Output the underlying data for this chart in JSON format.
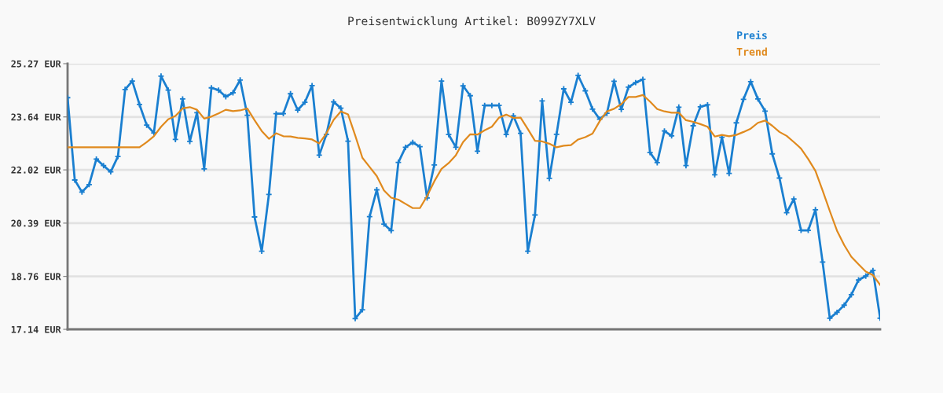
{
  "chart_data": {
    "type": "line",
    "title": "Preisentwicklung Artikel: B099ZY7XLV",
    "categories": [
      null,
      null,
      null,
      null,
      null,
      null,
      null,
      null,
      null,
      null,
      null,
      null,
      null,
      null,
      null,
      null,
      null,
      null,
      null,
      null,
      null,
      null,
      null,
      null,
      null,
      null,
      null,
      null,
      null,
      null,
      null,
      null,
      null,
      null,
      null,
      null,
      null,
      null,
      null,
      null,
      null,
      null,
      null,
      null,
      null,
      null,
      null,
      null,
      null,
      null,
      null,
      null,
      null,
      null,
      null,
      null,
      null,
      null,
      null,
      null,
      null,
      null,
      null,
      null,
      null,
      null,
      null,
      null,
      null,
      null,
      null,
      null,
      null,
      null,
      null,
      null,
      null,
      null,
      null,
      null,
      null,
      null,
      null,
      null,
      null,
      null,
      null,
      null,
      null,
      null,
      null,
      null,
      null,
      null,
      null,
      null,
      null,
      null,
      null,
      null,
      null,
      null,
      null,
      null,
      null,
      null,
      null,
      null,
      null,
      null,
      null,
      null,
      null,
      null
    ],
    "series": [
      {
        "name": "Preis",
        "color": "#1a7fd0",
        "marker": "cross",
        "values": [
          24.23,
          21.71,
          21.34,
          21.57,
          22.35,
          22.15,
          21.96,
          22.43,
          24.48,
          24.74,
          24.02,
          23.39,
          23.15,
          24.89,
          24.46,
          22.95,
          24.19,
          22.89,
          23.77,
          22.05,
          24.53,
          24.46,
          24.26,
          24.38,
          24.77,
          23.69,
          20.58,
          19.53,
          21.27,
          23.74,
          23.74,
          24.35,
          23.85,
          24.09,
          24.6,
          22.47,
          23.11,
          24.1,
          23.91,
          22.9,
          17.47,
          17.74,
          20.59,
          21.41,
          20.36,
          20.16,
          22.25,
          22.71,
          22.86,
          22.73,
          21.16,
          22.17,
          24.74,
          23.1,
          22.71,
          24.59,
          24.29,
          22.59,
          23.99,
          23.99,
          23.99,
          23.1,
          23.67,
          23.14,
          19.53,
          20.64,
          24.13,
          21.76,
          23.11,
          24.5,
          24.09,
          24.91,
          24.44,
          23.88,
          23.57,
          23.75,
          24.73,
          23.87,
          24.55,
          24.69,
          24.79,
          22.55,
          22.24,
          23.21,
          23.06,
          23.94,
          22.15,
          23.37,
          23.95,
          24.01,
          21.87,
          23.02,
          21.91,
          23.46,
          24.18,
          24.72,
          24.19,
          23.82,
          22.51,
          21.77,
          20.71,
          21.13,
          20.17,
          20.17,
          20.8,
          19.2,
          17.48,
          17.66,
          17.88,
          18.2,
          18.65,
          18.77,
          18.94,
          17.48
        ]
      },
      {
        "name": "Trend",
        "color": "#e08a1e",
        "marker": "none",
        "values": [
          22.71,
          22.71,
          22.71,
          22.71,
          22.71,
          22.71,
          22.71,
          22.71,
          22.71,
          22.71,
          22.71,
          22.87,
          23.05,
          23.34,
          23.57,
          23.67,
          23.9,
          23.94,
          23.86,
          23.59,
          23.65,
          23.75,
          23.86,
          23.82,
          23.84,
          23.9,
          23.54,
          23.21,
          22.97,
          23.14,
          23.05,
          23.04,
          23.0,
          22.98,
          22.95,
          22.83,
          23.14,
          23.55,
          23.81,
          23.72,
          23.07,
          22.39,
          22.11,
          21.83,
          21.39,
          21.17,
          21.11,
          20.98,
          20.85,
          20.85,
          21.22,
          21.67,
          22.05,
          22.23,
          22.47,
          22.87,
          23.11,
          23.1,
          23.23,
          23.34,
          23.62,
          23.71,
          23.61,
          23.62,
          23.27,
          22.91,
          22.89,
          22.82,
          22.71,
          22.76,
          22.78,
          22.95,
          23.02,
          23.13,
          23.51,
          23.81,
          23.89,
          24.03,
          24.25,
          24.25,
          24.31,
          24.11,
          23.88,
          23.81,
          23.77,
          23.77,
          23.54,
          23.49,
          23.42,
          23.34,
          23.04,
          23.09,
          23.05,
          23.09,
          23.18,
          23.28,
          23.46,
          23.53,
          23.37,
          23.18,
          23.06,
          22.87,
          22.67,
          22.35,
          21.99,
          21.39,
          20.76,
          20.16,
          19.72,
          19.36,
          19.13,
          18.91,
          18.8,
          18.5
        ]
      }
    ],
    "ylim": [
      17.14,
      25.27
    ],
    "yticks": [
      {
        "value": 17.14,
        "label": "17.14 EUR"
      },
      {
        "value": 18.76,
        "label": "18.76 EUR"
      },
      {
        "value": 20.39,
        "label": "20.39 EUR"
      },
      {
        "value": 22.02,
        "label": "22.02 EUR"
      },
      {
        "value": 23.64,
        "label": "23.64 EUR"
      },
      {
        "value": 25.27,
        "label": "25.27 EUR"
      }
    ],
    "tick_labels": "y",
    "grid": "y",
    "legend": "top right",
    "line_style": "solid"
  }
}
